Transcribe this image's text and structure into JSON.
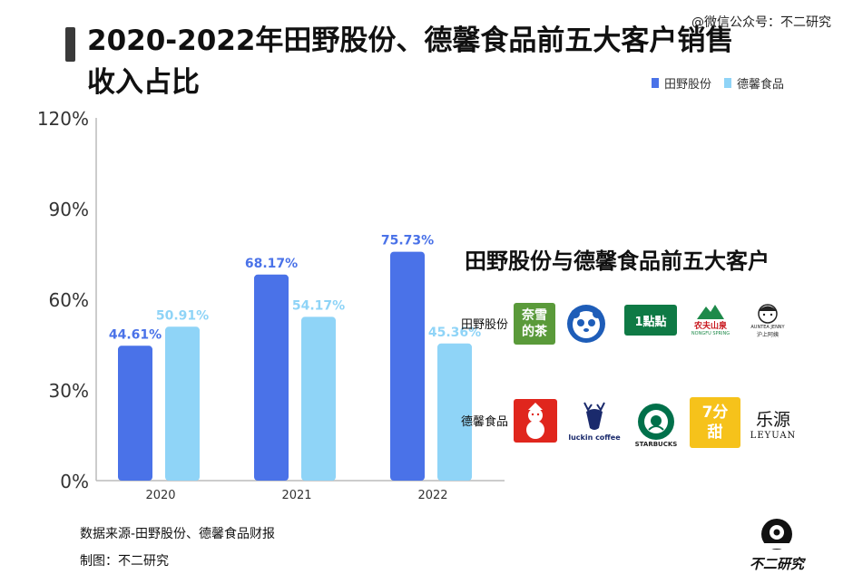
{
  "watermark": "@微信公众号：不二研究",
  "title": "2020-2022年田野股份、德馨食品前五大客户销售收入占比",
  "legend": [
    {
      "name": "田野股份",
      "color": "#4a72e8"
    },
    {
      "name": "德馨食品",
      "color": "#8fd4f7"
    }
  ],
  "chart_data": {
    "type": "bar",
    "categories": [
      "2020",
      "2021",
      "2022"
    ],
    "series": [
      {
        "name": "田野股份",
        "color": "#4a72e8",
        "values": [
          44.61,
          68.17,
          75.73
        ],
        "labels": [
          "44.61%",
          "68.17%",
          "75.73%"
        ]
      },
      {
        "name": "德馨食品",
        "color": "#8fd4f7",
        "values": [
          50.91,
          54.17,
          45.36
        ],
        "labels": [
          "50.91%",
          "54.17%",
          "45.36%"
        ]
      }
    ],
    "ylim": [
      0,
      120
    ],
    "yticks": [
      "0%",
      "30%",
      "60%",
      "90%",
      "120%"
    ],
    "ytick_values": [
      0,
      30,
      60,
      90,
      120
    ],
    "grid": false,
    "legend_position": "top-right"
  },
  "inset": {
    "title": "田野股份与德馨食品前五大客户",
    "rows": [
      {
        "label": "田野股份",
        "logos": [
          {
            "name": "nayuki-logo",
            "text": "奈雪的茶"
          },
          {
            "name": "panda-logo",
            "text": ""
          },
          {
            "name": "yidiandian-logo",
            "text": "1點點"
          },
          {
            "name": "nongfu-logo",
            "text": "农夫山泉",
            "subtext": "NONGFU SPRING"
          },
          {
            "name": "auntea-logo",
            "text": "AUNTEA JENNY",
            "subtext": "沪上阿姨"
          }
        ]
      },
      {
        "label": "德馨食品",
        "logos": [
          {
            "name": "mixue-logo",
            "text": ""
          },
          {
            "name": "luckin-logo",
            "text": "luckin coffee"
          },
          {
            "name": "starbucks-logo",
            "text": "STARBUCKS"
          },
          {
            "name": "qifentian-logo",
            "text": "7分甜"
          },
          {
            "name": "leyuan-logo",
            "text": "乐源",
            "subtext": "LEYUAN"
          }
        ]
      }
    ]
  },
  "footer": {
    "source": "数据来源-田野股份、德馨食品财报",
    "author": "制图：不二研究"
  },
  "brand": {
    "name": "不二研究"
  }
}
